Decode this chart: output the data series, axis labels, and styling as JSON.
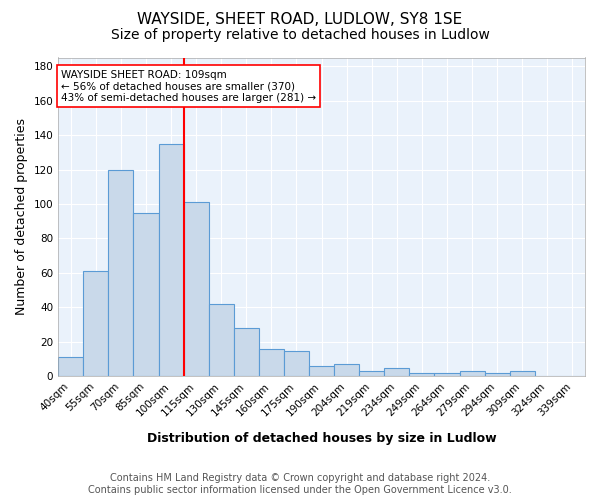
{
  "title1": "WAYSIDE, SHEET ROAD, LUDLOW, SY8 1SE",
  "title2": "Size of property relative to detached houses in Ludlow",
  "xlabel": "Distribution of detached houses by size in Ludlow",
  "ylabel": "Number of detached properties",
  "categories": [
    "40sqm",
    "55sqm",
    "70sqm",
    "85sqm",
    "100sqm",
    "115sqm",
    "130sqm",
    "145sqm",
    "160sqm",
    "175sqm",
    "190sqm",
    "204sqm",
    "219sqm",
    "234sqm",
    "249sqm",
    "264sqm",
    "279sqm",
    "294sqm",
    "309sqm",
    "324sqm",
    "339sqm"
  ],
  "values": [
    11,
    61,
    120,
    95,
    135,
    101,
    42,
    28,
    16,
    15,
    6,
    7,
    3,
    5,
    2,
    2,
    3,
    2,
    3,
    0,
    0
  ],
  "bar_color": "#c9d9ea",
  "bar_edge_color": "#5b9bd5",
  "red_line_x": 4.5,
  "annotation_text": "WAYSIDE SHEET ROAD: 109sqm\n← 56% of detached houses are smaller (370)\n43% of semi-detached houses are larger (281) →",
  "footer1": "Contains HM Land Registry data © Crown copyright and database right 2024.",
  "footer2": "Contains public sector information licensed under the Open Government Licence v3.0.",
  "ylim": [
    0,
    185
  ],
  "yticks": [
    0,
    20,
    40,
    60,
    80,
    100,
    120,
    140,
    160,
    180
  ],
  "background_color": "#eaf2fb",
  "grid_color": "white",
  "title1_fontsize": 11,
  "title2_fontsize": 10,
  "axis_label_fontsize": 9,
  "tick_fontsize": 7.5,
  "footer_fontsize": 7
}
